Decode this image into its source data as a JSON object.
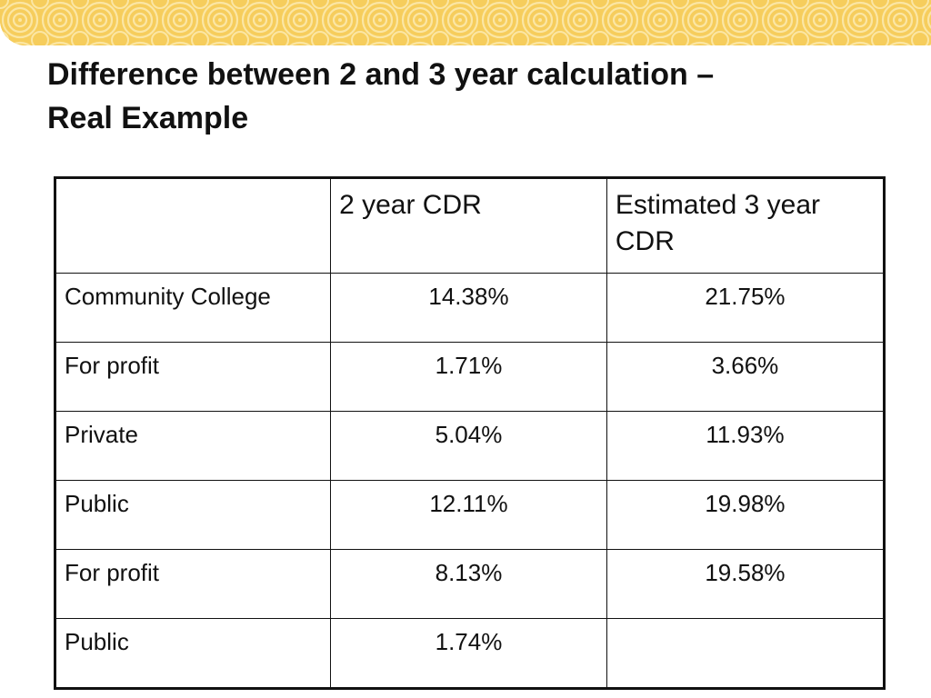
{
  "title": {
    "line1": "Difference between 2 and 3 year calculation –",
    "line2": "Real Example"
  },
  "table": {
    "header": [
      "",
      "2 year CDR",
      "Estimated 3 year CDR"
    ],
    "rows": [
      {
        "label": "Community College",
        "two_year": "14.38%",
        "three_year": "21.75%"
      },
      {
        "label": "For profit",
        "two_year": "1.71%",
        "three_year": "3.66%"
      },
      {
        "label": "Private",
        "two_year": "5.04%",
        "three_year": "11.93%"
      },
      {
        "label": "Public",
        "two_year": "12.11%",
        "three_year": "19.98%"
      },
      {
        "label": "For profit",
        "two_year": "8.13%",
        "three_year": "19.58%"
      },
      {
        "label": "Public",
        "two_year": "1.74%",
        "three_year": ""
      }
    ]
  },
  "colors": {
    "banner": "#f6cd5c",
    "banner_swirl": "#fbe6a4",
    "text": "#111111"
  }
}
